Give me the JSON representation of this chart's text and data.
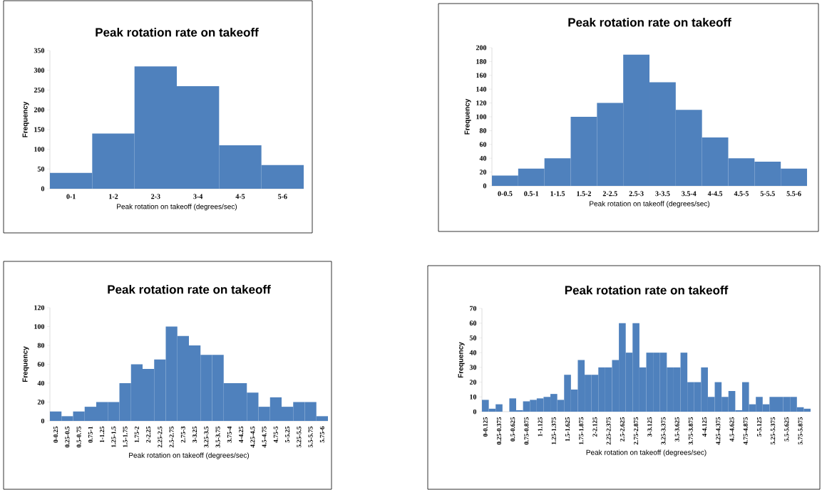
{
  "chart_data": [
    {
      "type": "bar",
      "title": "Peak rotation rate on takeoff",
      "xlabel": "Peak rotation on takeoff (degrees/sec)",
      "ylabel": "Frequency",
      "categories": [
        "0-1",
        "1-2",
        "2-3",
        "3-4",
        "4-5",
        "5-6"
      ],
      "values": [
        40,
        140,
        310,
        260,
        110,
        60
      ],
      "color": "#4f81bd",
      "ylim": [
        0,
        350
      ],
      "yticks": [
        0,
        50,
        100,
        150,
        200,
        250,
        300,
        350
      ]
    },
    {
      "type": "bar",
      "title": "Peak rotation rate on takeoff",
      "xlabel": "Peak rotation on takeoff (degrees/sec)",
      "ylabel": "Frequency",
      "categories": [
        "0-0.5",
        "0.5-1",
        "1-1.5",
        "1.5-2",
        "2-2.5",
        "2.5-3",
        "3-3.5",
        "3.5-4",
        "4-4.5",
        "4.5-5",
        "5-5.5",
        "5.5-6"
      ],
      "values": [
        15,
        25,
        40,
        100,
        120,
        190,
        150,
        110,
        70,
        40,
        35,
        25
      ],
      "color": "#4f81bd",
      "ylim": [
        0,
        200
      ],
      "yticks": [
        0,
        20,
        40,
        60,
        80,
        100,
        120,
        140,
        160,
        180,
        200
      ]
    },
    {
      "type": "bar",
      "title": "Peak rotation rate on takeoff",
      "xlabel": "Peak rotation on takeoff (degrees/sec)",
      "ylabel": "Frequency",
      "categories": [
        "0-0.25",
        "0.25-0.5",
        "0.5-0.75",
        "0.75-1",
        "1-1.25",
        "1.25-1.5",
        "1.5-1.75",
        "1.75-2",
        "2-2.25",
        "2.25-2.5",
        "2.5-2.75",
        "2.75-3",
        "3-3.25",
        "3.25-3.5",
        "3.5-3.75",
        "3.75-4",
        "4-4.25",
        "4.25-4.5",
        "4.5-4.75",
        "4.75-5",
        "5-5.25",
        "5.25-5.5",
        "5.5-5.75",
        "5.75-6"
      ],
      "values": [
        10,
        5,
        10,
        15,
        20,
        20,
        40,
        60,
        55,
        65,
        100,
        90,
        80,
        70,
        70,
        40,
        40,
        30,
        15,
        25,
        15,
        20,
        20,
        5
      ],
      "color": "#4f81bd",
      "ylim": [
        0,
        120
      ],
      "yticks": [
        0,
        20,
        40,
        60,
        80,
        100,
        120
      ]
    },
    {
      "type": "bar",
      "title": "Peak rotation rate on takeoff",
      "xlabel": "Peak rotation on takeoff (degrees/sec)",
      "ylabel": "Frequency",
      "categories": [
        "0-0.125",
        null,
        "0.25-0.375",
        null,
        "0.5-0.625",
        null,
        "0.75-0.875",
        null,
        "1-1.125",
        null,
        "1.25-1.375",
        null,
        "1.5-1.625",
        null,
        "1.75-1.875",
        null,
        "2-2.125",
        null,
        "2.25-2.375",
        null,
        "2.5-2.625",
        null,
        "2.75-2.875",
        null,
        "3-3.125",
        null,
        "3.25-3.375",
        null,
        "3.5-3.625",
        null,
        "3.75-3.875",
        null,
        "4-4.125",
        null,
        "4.25-4.375",
        null,
        "4.5-4.625",
        null,
        "4.75-4.875",
        null,
        "5-5.125",
        null,
        "5.25-5.375",
        null,
        "5.5-5.625",
        null,
        "5.75-5.875",
        null
      ],
      "values": [
        8,
        2,
        5,
        0,
        9,
        1,
        7,
        8,
        9,
        10,
        12,
        8,
        25,
        15,
        35,
        25,
        25,
        30,
        30,
        35,
        60,
        40,
        60,
        30,
        40,
        40,
        40,
        30,
        30,
        40,
        20,
        20,
        30,
        10,
        20,
        10,
        14,
        1,
        20,
        5,
        10,
        5,
        10,
        10,
        10,
        10,
        3,
        2
      ],
      "color": "#4f81bd",
      "ylim": [
        0,
        70
      ],
      "yticks": [
        0,
        10,
        20,
        30,
        40,
        50,
        60,
        70
      ]
    }
  ]
}
